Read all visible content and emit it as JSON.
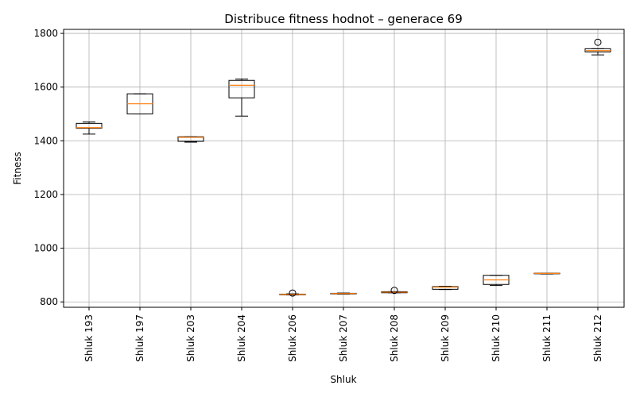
{
  "chart_data": {
    "type": "boxplot",
    "title": "Distribuce fitness hodnot – generace 69",
    "xlabel": "Shluk",
    "ylabel": "Fitness",
    "ylim": [
      780,
      1815
    ],
    "yticks": [
      800,
      1000,
      1200,
      1400,
      1600,
      1800
    ],
    "grid": true,
    "colors": {
      "box": "#000000",
      "median": "#ff7f0e",
      "grid": "#b0b0b0",
      "axes": "#000000"
    },
    "categories": [
      "Shluk 193",
      "Shluk 197",
      "Shluk 203",
      "Shluk 204",
      "Shluk 206",
      "Shluk 207",
      "Shluk 208",
      "Shluk 209",
      "Shluk 210",
      "Shluk 211",
      "Shluk 212"
    ],
    "boxes": [
      {
        "whislo": 1425,
        "q1": 1447,
        "med": 1449,
        "q3": 1465,
        "whishi": 1470,
        "fliers": []
      },
      {
        "whislo": 1500,
        "q1": 1500,
        "med": 1538,
        "q3": 1575,
        "whishi": 1575,
        "fliers": []
      },
      {
        "whislo": 1395,
        "q1": 1398,
        "med": 1413,
        "q3": 1415,
        "whishi": 1415,
        "fliers": []
      },
      {
        "whislo": 1492,
        "q1": 1560,
        "med": 1607,
        "q3": 1625,
        "whishi": 1630,
        "fliers": []
      },
      {
        "whislo": 826,
        "q1": 827,
        "med": 828,
        "q3": 829,
        "whishi": 830,
        "fliers": [
          833
        ]
      },
      {
        "whislo": 829,
        "q1": 830,
        "med": 831,
        "q3": 832,
        "whishi": 833,
        "fliers": []
      },
      {
        "whislo": 834,
        "q1": 834,
        "med": 836,
        "q3": 838,
        "whishi": 838,
        "fliers": [
          843
        ]
      },
      {
        "whislo": 846,
        "q1": 847,
        "med": 855,
        "q3": 857,
        "whishi": 858,
        "fliers": []
      },
      {
        "whislo": 861,
        "q1": 865,
        "med": 882,
        "q3": 899,
        "whishi": 899,
        "fliers": []
      },
      {
        "whislo": 904,
        "q1": 905,
        "med": 906,
        "q3": 907,
        "whishi": 907,
        "fliers": []
      },
      {
        "whislo": 1720,
        "q1": 1731,
        "med": 1736,
        "q3": 1743,
        "whishi": 1743,
        "fliers": [
          1767
        ]
      }
    ]
  }
}
